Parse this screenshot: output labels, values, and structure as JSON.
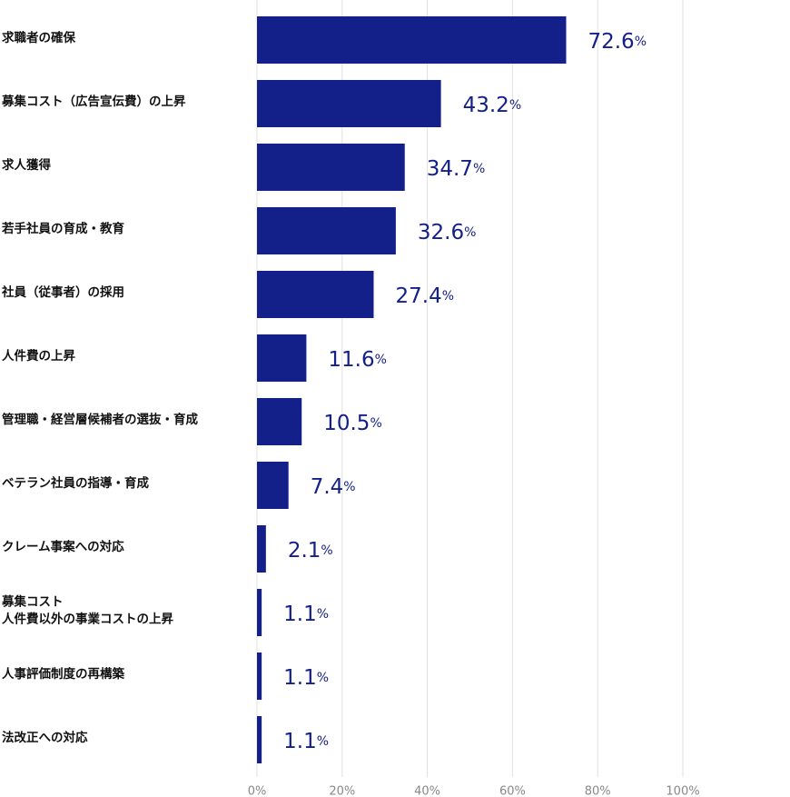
{
  "chart_data": {
    "type": "bar",
    "orientation": "horizontal",
    "categories": [
      "求職者の確保",
      "募集コスト（広告宣伝費）の上昇",
      "求人獲得",
      "若手社員の育成・教育",
      "社員（従事者）の採用",
      "人件費の上昇",
      "管理職・経営層候補者の選抜・育成",
      "ベテラン社員の指導・育成",
      "クレーム事案への対応",
      "募集コスト\n人件費以外の事業コストの上昇",
      "人事評価制度の再構築",
      "法改正への対応"
    ],
    "values": [
      72.6,
      43.2,
      34.7,
      32.6,
      27.4,
      11.6,
      10.5,
      7.4,
      2.1,
      1.1,
      1.1,
      1.1
    ],
    "value_labels": [
      "72.6%",
      "43.2%",
      "34.7%",
      "32.6%",
      "27.4%",
      "11.6%",
      "10.5%",
      "7.4%",
      "2.1%",
      "1.1%",
      "1.1%",
      "1.1%"
    ],
    "color": "#14208a",
    "xlim": [
      0,
      100
    ],
    "xticks": [
      {
        "value": 0,
        "label": "0%"
      },
      {
        "value": 20,
        "label": "20%"
      },
      {
        "value": 40,
        "label": "40%"
      },
      {
        "value": 60,
        "label": "60%"
      },
      {
        "value": 80,
        "label": "80%"
      },
      {
        "value": 100,
        "label": "100%"
      }
    ],
    "grid": true
  }
}
